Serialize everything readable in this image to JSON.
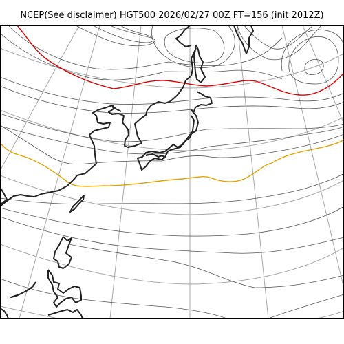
{
  "title": "NCEP(See disclaimer) HGT500 2026/02/27 00Z FT=156 (init 2012Z)",
  "colors": {
    "graticule": "#a8a8a8",
    "contour": "#555555",
    "contour_5400": "#e69f00",
    "contour_5700": "#e00000",
    "coastline": "#222222",
    "background": "#ffffff"
  }
}
